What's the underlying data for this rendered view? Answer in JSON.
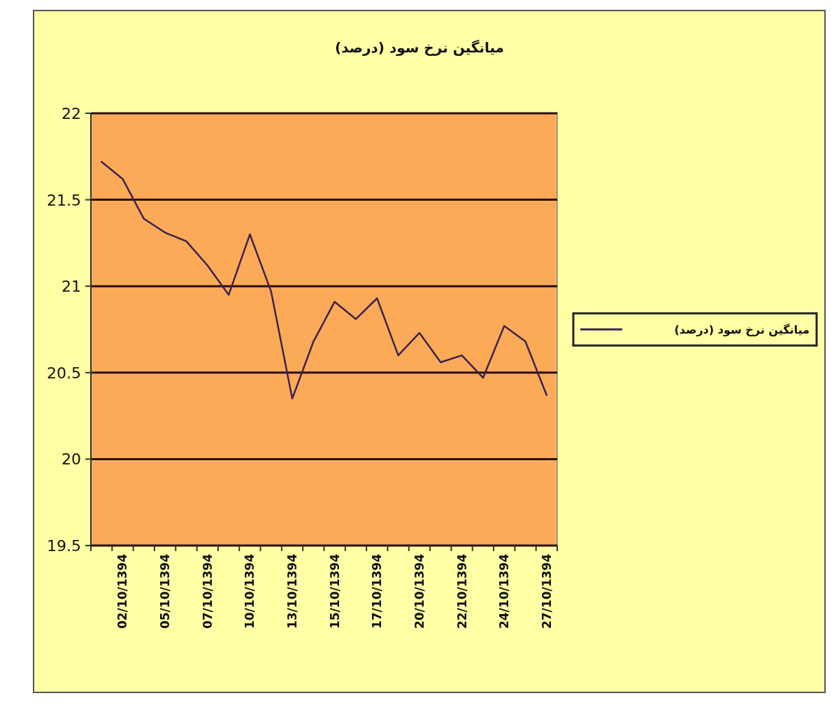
{
  "chart_data": {
    "type": "line",
    "title": "میانگین نرخ سود (درصد)",
    "categories": [
      null,
      "02/10/1394",
      null,
      "05/10/1394",
      null,
      "07/10/1394",
      null,
      "10/10/1394",
      null,
      "13/10/1394",
      null,
      "15/10/1394",
      null,
      "17/10/1394",
      null,
      "20/10/1394",
      null,
      "22/10/1394",
      null,
      "24/10/1394",
      null,
      "27/10/1394"
    ],
    "series": [
      {
        "name": "میانگین نرخ سود (درصد)",
        "color": "#3b2352",
        "values": [
          21.72,
          21.62,
          21.39,
          21.31,
          21.26,
          21.12,
          20.95,
          21.3,
          20.97,
          20.35,
          20.68,
          20.91,
          20.81,
          20.93,
          20.6,
          20.73,
          20.56,
          20.6,
          20.47,
          20.77,
          20.68,
          20.37
        ]
      }
    ],
    "ylim": [
      19.5,
      22
    ],
    "yticks": [
      19.5,
      20,
      20.5,
      21,
      21.5,
      22
    ],
    "grid": "y",
    "legend": "right",
    "marker": "none",
    "line_style": "solid"
  }
}
